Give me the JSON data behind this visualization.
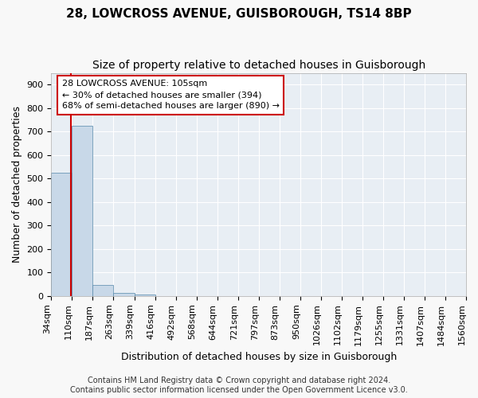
{
  "title": "28, LOWCROSS AVENUE, GUISBOROUGH, TS14 8BP",
  "subtitle": "Size of property relative to detached houses in Guisborough",
  "xlabel": "Distribution of detached houses by size in Guisborough",
  "ylabel": "Number of detached properties",
  "categories": [
    "34sqm",
    "110sqm",
    "187sqm",
    "263sqm",
    "339sqm",
    "416sqm",
    "492sqm",
    "568sqm",
    "644sqm",
    "721sqm",
    "797sqm",
    "873sqm",
    "950sqm",
    "1026sqm",
    "1102sqm",
    "1179sqm",
    "1255sqm",
    "1331sqm",
    "1407sqm",
    "1484sqm",
    "1560sqm"
  ],
  "bar_heights": [
    525,
    725,
    48,
    12,
    7,
    0,
    0,
    0,
    0,
    0,
    0,
    0,
    0,
    0,
    0,
    0,
    0,
    0,
    0,
    0
  ],
  "bar_color": "#c8d8e8",
  "bar_edge_color": "#5588aa",
  "annotation_text": "28 LOWCROSS AVENUE: 105sqm\n← 30% of detached houses are smaller (394)\n68% of semi-detached houses are larger (890) →",
  "annotation_box_color": "#ffffff",
  "annotation_box_edge": "#cc0000",
  "red_line_color": "#cc0000",
  "ylim": [
    0,
    950
  ],
  "yticks": [
    0,
    100,
    200,
    300,
    400,
    500,
    600,
    700,
    800,
    900
  ],
  "footer_line1": "Contains HM Land Registry data © Crown copyright and database right 2024.",
  "footer_line2": "Contains public sector information licensed under the Open Government Licence v3.0.",
  "bg_color": "#e8eef4",
  "grid_color": "#ffffff",
  "title_fontsize": 11,
  "subtitle_fontsize": 10,
  "axis_label_fontsize": 9,
  "tick_fontsize": 8,
  "annotation_fontsize": 8,
  "footer_fontsize": 7
}
